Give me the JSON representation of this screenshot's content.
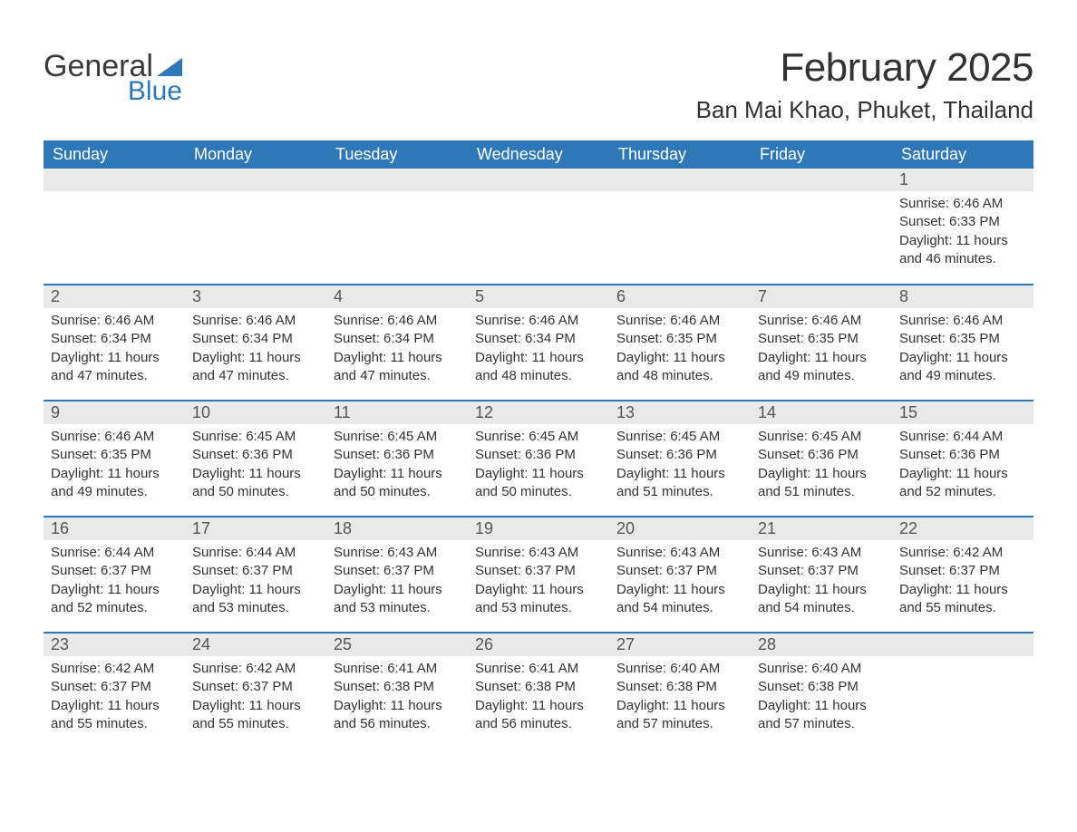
{
  "logo": {
    "text_general": "General",
    "text_blue": "Blue",
    "triangle_color": "#2f78b7"
  },
  "header": {
    "month_title": "February 2025",
    "location": "Ban Mai Khao, Phuket, Thailand"
  },
  "colors": {
    "header_bg": "#2f78b7",
    "header_text": "#ffffff",
    "daynum_bg": "#e9e9e9",
    "row_border": "#2f78b7",
    "body_text": "#333333"
  },
  "day_headers": [
    "Sunday",
    "Monday",
    "Tuesday",
    "Wednesday",
    "Thursday",
    "Friday",
    "Saturday"
  ],
  "weeks": [
    [
      null,
      null,
      null,
      null,
      null,
      null,
      {
        "n": "1",
        "sunrise": "Sunrise: 6:46 AM",
        "sunset": "Sunset: 6:33 PM",
        "daylight": "Daylight: 11 hours and 46 minutes."
      }
    ],
    [
      {
        "n": "2",
        "sunrise": "Sunrise: 6:46 AM",
        "sunset": "Sunset: 6:34 PM",
        "daylight": "Daylight: 11 hours and 47 minutes."
      },
      {
        "n": "3",
        "sunrise": "Sunrise: 6:46 AM",
        "sunset": "Sunset: 6:34 PM",
        "daylight": "Daylight: 11 hours and 47 minutes."
      },
      {
        "n": "4",
        "sunrise": "Sunrise: 6:46 AM",
        "sunset": "Sunset: 6:34 PM",
        "daylight": "Daylight: 11 hours and 47 minutes."
      },
      {
        "n": "5",
        "sunrise": "Sunrise: 6:46 AM",
        "sunset": "Sunset: 6:34 PM",
        "daylight": "Daylight: 11 hours and 48 minutes."
      },
      {
        "n": "6",
        "sunrise": "Sunrise: 6:46 AM",
        "sunset": "Sunset: 6:35 PM",
        "daylight": "Daylight: 11 hours and 48 minutes."
      },
      {
        "n": "7",
        "sunrise": "Sunrise: 6:46 AM",
        "sunset": "Sunset: 6:35 PM",
        "daylight": "Daylight: 11 hours and 49 minutes."
      },
      {
        "n": "8",
        "sunrise": "Sunrise: 6:46 AM",
        "sunset": "Sunset: 6:35 PM",
        "daylight": "Daylight: 11 hours and 49 minutes."
      }
    ],
    [
      {
        "n": "9",
        "sunrise": "Sunrise: 6:46 AM",
        "sunset": "Sunset: 6:35 PM",
        "daylight": "Daylight: 11 hours and 49 minutes."
      },
      {
        "n": "10",
        "sunrise": "Sunrise: 6:45 AM",
        "sunset": "Sunset: 6:36 PM",
        "daylight": "Daylight: 11 hours and 50 minutes."
      },
      {
        "n": "11",
        "sunrise": "Sunrise: 6:45 AM",
        "sunset": "Sunset: 6:36 PM",
        "daylight": "Daylight: 11 hours and 50 minutes."
      },
      {
        "n": "12",
        "sunrise": "Sunrise: 6:45 AM",
        "sunset": "Sunset: 6:36 PM",
        "daylight": "Daylight: 11 hours and 50 minutes."
      },
      {
        "n": "13",
        "sunrise": "Sunrise: 6:45 AM",
        "sunset": "Sunset: 6:36 PM",
        "daylight": "Daylight: 11 hours and 51 minutes."
      },
      {
        "n": "14",
        "sunrise": "Sunrise: 6:45 AM",
        "sunset": "Sunset: 6:36 PM",
        "daylight": "Daylight: 11 hours and 51 minutes."
      },
      {
        "n": "15",
        "sunrise": "Sunrise: 6:44 AM",
        "sunset": "Sunset: 6:36 PM",
        "daylight": "Daylight: 11 hours and 52 minutes."
      }
    ],
    [
      {
        "n": "16",
        "sunrise": "Sunrise: 6:44 AM",
        "sunset": "Sunset: 6:37 PM",
        "daylight": "Daylight: 11 hours and 52 minutes."
      },
      {
        "n": "17",
        "sunrise": "Sunrise: 6:44 AM",
        "sunset": "Sunset: 6:37 PM",
        "daylight": "Daylight: 11 hours and 53 minutes."
      },
      {
        "n": "18",
        "sunrise": "Sunrise: 6:43 AM",
        "sunset": "Sunset: 6:37 PM",
        "daylight": "Daylight: 11 hours and 53 minutes."
      },
      {
        "n": "19",
        "sunrise": "Sunrise: 6:43 AM",
        "sunset": "Sunset: 6:37 PM",
        "daylight": "Daylight: 11 hours and 53 minutes."
      },
      {
        "n": "20",
        "sunrise": "Sunrise: 6:43 AM",
        "sunset": "Sunset: 6:37 PM",
        "daylight": "Daylight: 11 hours and 54 minutes."
      },
      {
        "n": "21",
        "sunrise": "Sunrise: 6:43 AM",
        "sunset": "Sunset: 6:37 PM",
        "daylight": "Daylight: 11 hours and 54 minutes."
      },
      {
        "n": "22",
        "sunrise": "Sunrise: 6:42 AM",
        "sunset": "Sunset: 6:37 PM",
        "daylight": "Daylight: 11 hours and 55 minutes."
      }
    ],
    [
      {
        "n": "23",
        "sunrise": "Sunrise: 6:42 AM",
        "sunset": "Sunset: 6:37 PM",
        "daylight": "Daylight: 11 hours and 55 minutes."
      },
      {
        "n": "24",
        "sunrise": "Sunrise: 6:42 AM",
        "sunset": "Sunset: 6:37 PM",
        "daylight": "Daylight: 11 hours and 55 minutes."
      },
      {
        "n": "25",
        "sunrise": "Sunrise: 6:41 AM",
        "sunset": "Sunset: 6:38 PM",
        "daylight": "Daylight: 11 hours and 56 minutes."
      },
      {
        "n": "26",
        "sunrise": "Sunrise: 6:41 AM",
        "sunset": "Sunset: 6:38 PM",
        "daylight": "Daylight: 11 hours and 56 minutes."
      },
      {
        "n": "27",
        "sunrise": "Sunrise: 6:40 AM",
        "sunset": "Sunset: 6:38 PM",
        "daylight": "Daylight: 11 hours and 57 minutes."
      },
      {
        "n": "28",
        "sunrise": "Sunrise: 6:40 AM",
        "sunset": "Sunset: 6:38 PM",
        "daylight": "Daylight: 11 hours and 57 minutes."
      },
      null
    ]
  ]
}
